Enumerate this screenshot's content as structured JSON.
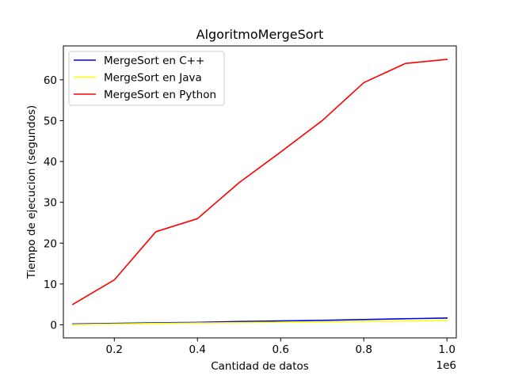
{
  "chart_data": {
    "type": "line",
    "title": "AlgoritmoMergeSort",
    "xlabel": "Cantidad de datos",
    "ylabel": "Tiempo de ejecucion (segundos)",
    "x_offset_label": "1e6",
    "xlim": [
      0.0775,
      1.0225
    ],
    "ylim": [
      -3.2,
      68.3
    ],
    "x_ticks": [
      0.2,
      0.4,
      0.6,
      0.8,
      1.0
    ],
    "x_tick_labels": [
      "0.2",
      "0.4",
      "0.6",
      "0.8",
      "1.0"
    ],
    "y_ticks": [
      0,
      10,
      20,
      30,
      40,
      50,
      60
    ],
    "y_tick_labels": [
      "0",
      "10",
      "20",
      "30",
      "40",
      "50",
      "60"
    ],
    "grid": false,
    "legend_position": "top-left",
    "x": [
      0.1,
      0.2,
      0.3,
      0.4,
      0.5,
      0.6,
      0.7,
      0.8,
      0.9,
      1.0
    ],
    "series": [
      {
        "name": "MergeSort en C++",
        "color": "#0000ff",
        "values": [
          0.2,
          0.35,
          0.5,
          0.6,
          0.8,
          0.95,
          1.1,
          1.3,
          1.5,
          1.65
        ]
      },
      {
        "name": "MergeSort en Java",
        "color": "#ffff00",
        "values": [
          0.05,
          0.2,
          0.35,
          0.45,
          0.55,
          0.65,
          0.75,
          0.85,
          0.95,
          1.05
        ]
      },
      {
        "name": "MergeSort en Python",
        "color": "#ff0000",
        "values": [
          5.0,
          11.0,
          22.8,
          26.0,
          34.8,
          42.3,
          50.0,
          59.3,
          64.0,
          65.0
        ]
      }
    ]
  }
}
